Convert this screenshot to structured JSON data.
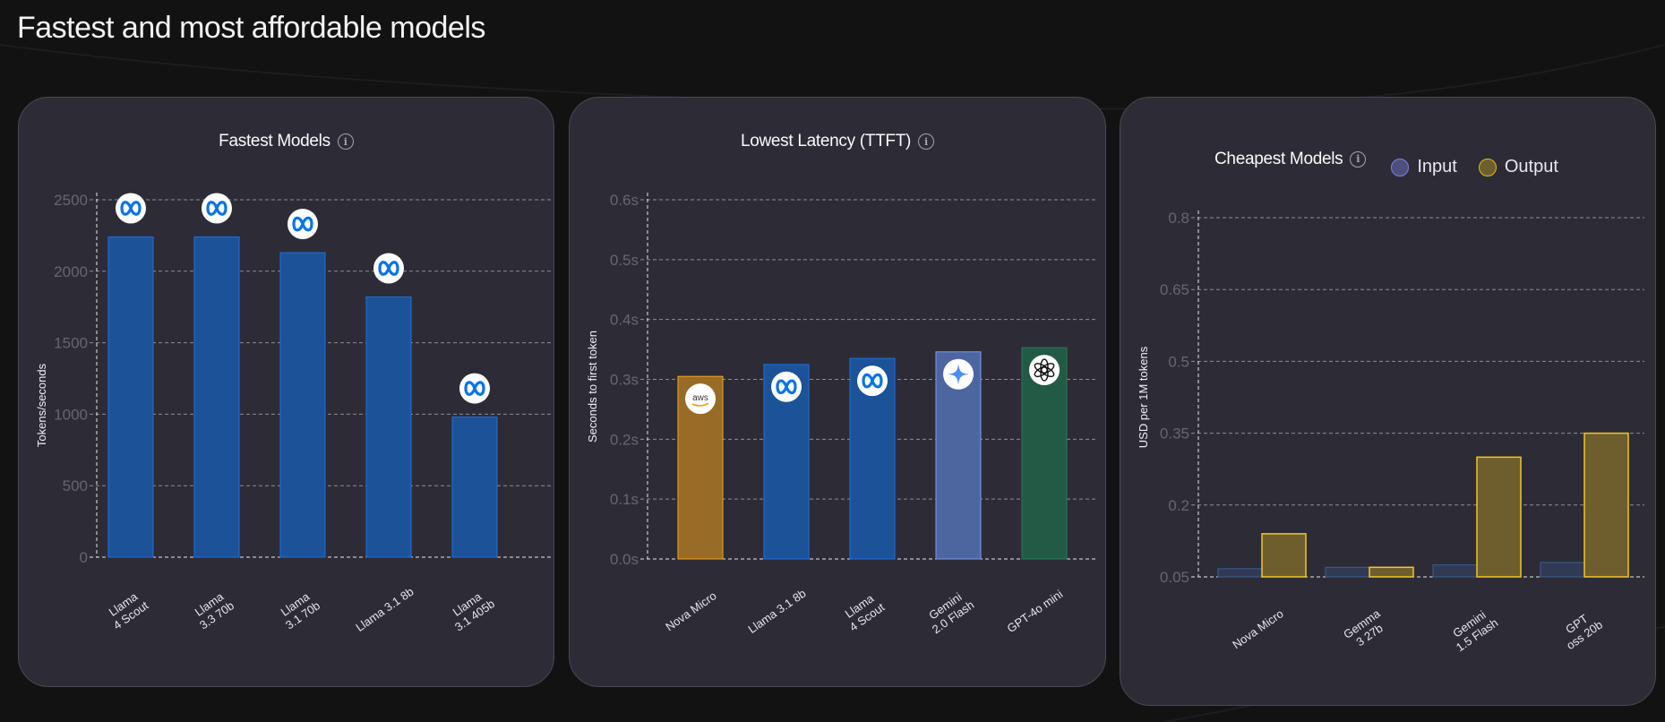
{
  "page": {
    "title": "Fastest and most affordable models"
  },
  "colors": {
    "background": "#121213",
    "card": "#2d2c36",
    "meta_blue_fill": "#1c5297",
    "meta_blue_stroke": "#1f6fe0",
    "aws_fill": "#986b26",
    "aws_stroke": "#f5a623",
    "gemini_fill": "#4d66a0",
    "gemini_stroke": "#7b9cf0",
    "openai_fill": "#235a46",
    "openai_stroke": "#2a7a55",
    "input_fill": "#313a54",
    "input_stroke": "#3d5e95",
    "output_fill": "#6f5e2d",
    "output_stroke": "#f2c623",
    "legend_input": "#4d4f7e",
    "legend_input_stroke": "#7e81e0",
    "legend_output": "#6f5e2d",
    "legend_output_stroke": "#e2b52a"
  },
  "chart_data": [
    {
      "id": "fastest",
      "type": "bar",
      "title": "Fastest Models",
      "info_icon": "info-icon",
      "xlabel": "",
      "ylabel": "Tokens/seconds",
      "ylim": [
        0,
        2500
      ],
      "yticks": [
        0,
        500,
        1000,
        1500,
        2000,
        2500
      ],
      "ytick_labels": [
        "0",
        "500",
        "1000",
        "1500",
        "2000",
        "2500"
      ],
      "grid": true,
      "categories": [
        [
          "Llama",
          "4 Scout"
        ],
        [
          "Llama",
          "3.3 70b"
        ],
        [
          "Llama",
          "3.1 70b"
        ],
        [
          "Llama 3.1 8b"
        ],
        [
          "Llama",
          "3.1 405b"
        ]
      ],
      "values": [
        2240,
        2240,
        2130,
        1820,
        980
      ],
      "bar_providers": [
        "meta",
        "meta",
        "meta",
        "meta",
        "meta"
      ],
      "bar_icons": [
        "meta-logo-icon",
        "meta-logo-icon",
        "meta-logo-icon",
        "meta-logo-icon",
        "meta-logo-icon"
      ],
      "icon_position": "above"
    },
    {
      "id": "latency",
      "type": "bar",
      "title": "Lowest Latency (TTFT)",
      "info_icon": "info-icon",
      "xlabel": "",
      "ylabel": "Seconds to first token",
      "ylim": [
        0,
        0.6
      ],
      "yticks": [
        0,
        0.1,
        0.2,
        0.3,
        0.4,
        0.5,
        0.6
      ],
      "ytick_labels": [
        "0.0s",
        "0.1s",
        "0.2s",
        "0.3s",
        "0.4s",
        "0.5s",
        "0.6s"
      ],
      "grid": true,
      "categories": [
        [
          "Nova Micro"
        ],
        [
          "Llama 3.1 8b"
        ],
        [
          "Llama",
          "4 Scout"
        ],
        [
          "Gemini",
          "2.0 Flash"
        ],
        [
          "GPT-4o mini"
        ]
      ],
      "values": [
        0.305,
        0.325,
        0.335,
        0.346,
        0.353
      ],
      "bar_providers": [
        "aws",
        "meta",
        "meta",
        "gemini",
        "openai"
      ],
      "bar_icons": [
        "aws-logo-icon",
        "meta-logo-icon",
        "meta-logo-icon",
        "gemini-logo-icon",
        "openai-logo-icon"
      ],
      "icon_position": "inside-top"
    },
    {
      "id": "cheapest",
      "type": "bar",
      "title": "Cheapest Models",
      "info_icon": "info-icon",
      "xlabel": "",
      "ylabel": "USD per 1M tokens",
      "ylim": [
        0.05,
        0.8
      ],
      "yticks": [
        0.05,
        0.2,
        0.35,
        0.5,
        0.65,
        0.8
      ],
      "ytick_labels": [
        "0.05",
        "0.2",
        "0.35",
        "0.5",
        "0.65",
        "0.8"
      ],
      "grid": true,
      "legend": {
        "placement": "top-right",
        "entries": [
          "Input",
          "Output"
        ]
      },
      "categories": [
        [
          "Nova Micro"
        ],
        [
          "Gemma",
          "3 27b"
        ],
        [
          "Gemini",
          "1.5 Flash"
        ],
        [
          "GPT",
          "oss 20b"
        ]
      ],
      "series": [
        {
          "name": "Input",
          "values": [
            0.035,
            0.07,
            0.075,
            0.08
          ]
        },
        {
          "name": "Output",
          "values": [
            0.14,
            0.07,
            0.3,
            0.35
          ]
        }
      ]
    }
  ]
}
